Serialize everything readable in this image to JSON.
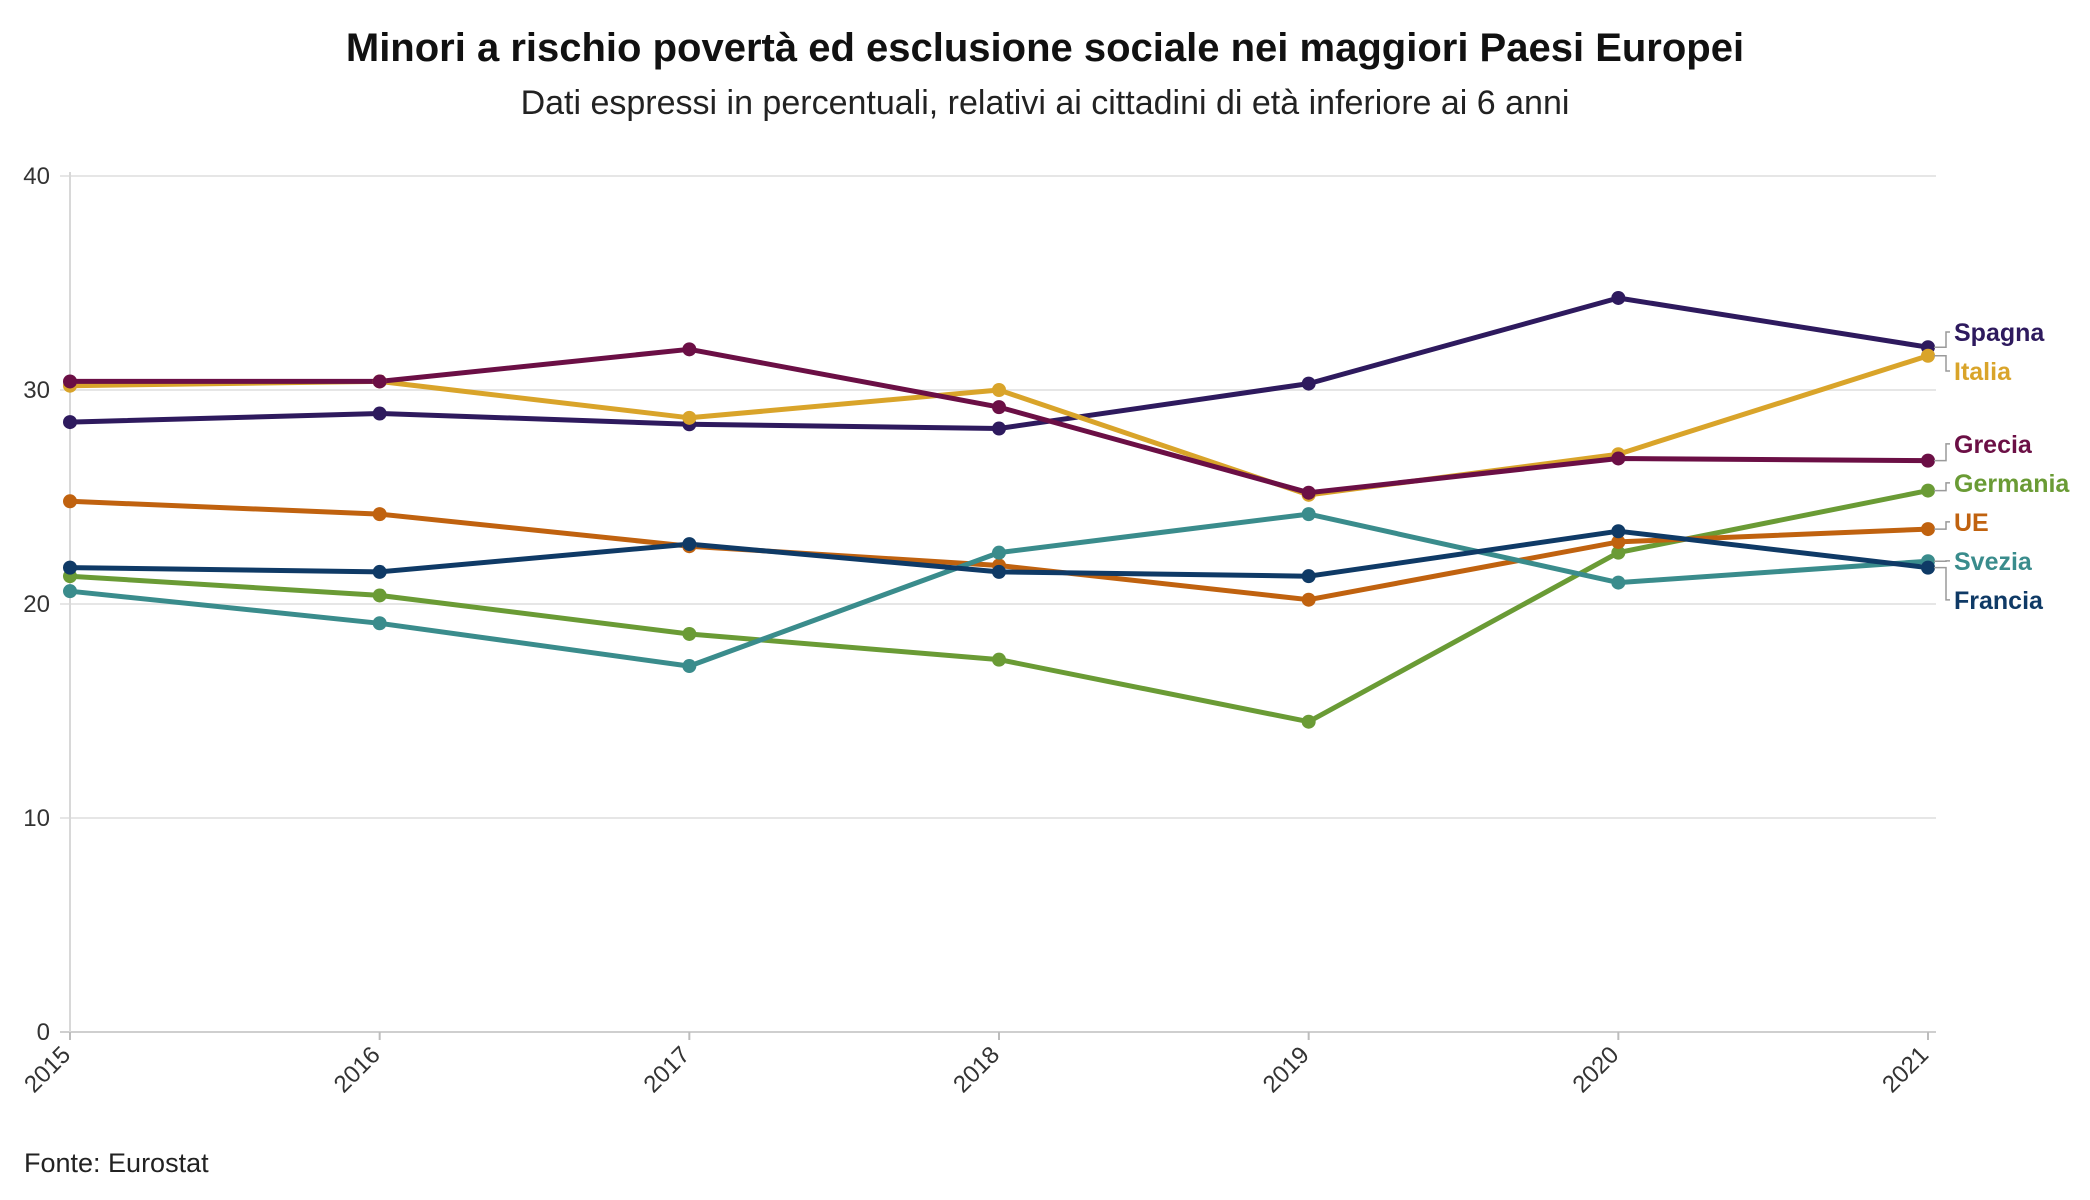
{
  "chart_data": {
    "type": "line",
    "title": "Minori a rischio povertà ed esclusione sociale nei maggiori Paesi Europei",
    "subtitle": "Dati espressi in percentuali, relativi ai cittadini di età inferiore ai 6 anni",
    "source": "Fonte: Eurostat",
    "x": [
      "2015",
      "2016",
      "2017",
      "2018",
      "2019",
      "2020",
      "2021"
    ],
    "y_ticks": [
      "0",
      "10",
      "20",
      "30",
      "40"
    ],
    "ylim": [
      0,
      40
    ],
    "grid": true,
    "legend": "direct labels at right end of lines",
    "series": [
      {
        "name": "Spagna",
        "color": "#2e1a5e",
        "values": [
          28.5,
          28.9,
          28.4,
          28.2,
          30.3,
          34.3,
          32.0
        ]
      },
      {
        "name": "Italia",
        "color": "#d9a42a",
        "values": [
          30.2,
          30.4,
          28.7,
          30.0,
          25.1,
          27.0,
          31.6
        ]
      },
      {
        "name": "Grecia",
        "color": "#6b0f45",
        "values": [
          30.4,
          30.4,
          31.9,
          29.2,
          25.2,
          26.8,
          26.7
        ]
      },
      {
        "name": "Germania",
        "color": "#6a9b35",
        "values": [
          21.3,
          20.4,
          18.6,
          17.4,
          14.5,
          22.4,
          25.3
        ]
      },
      {
        "name": "UE",
        "color": "#c0620f",
        "values": [
          24.8,
          24.2,
          22.7,
          21.8,
          20.2,
          22.9,
          23.5
        ]
      },
      {
        "name": "Svezia",
        "color": "#3a8c8c",
        "values": [
          20.6,
          19.1,
          17.1,
          22.4,
          24.2,
          21.0,
          22.0
        ]
      },
      {
        "name": "Francia",
        "color": "#0f3a66",
        "values": [
          21.7,
          21.5,
          22.8,
          21.5,
          21.3,
          23.4,
          21.7
        ]
      }
    ]
  }
}
